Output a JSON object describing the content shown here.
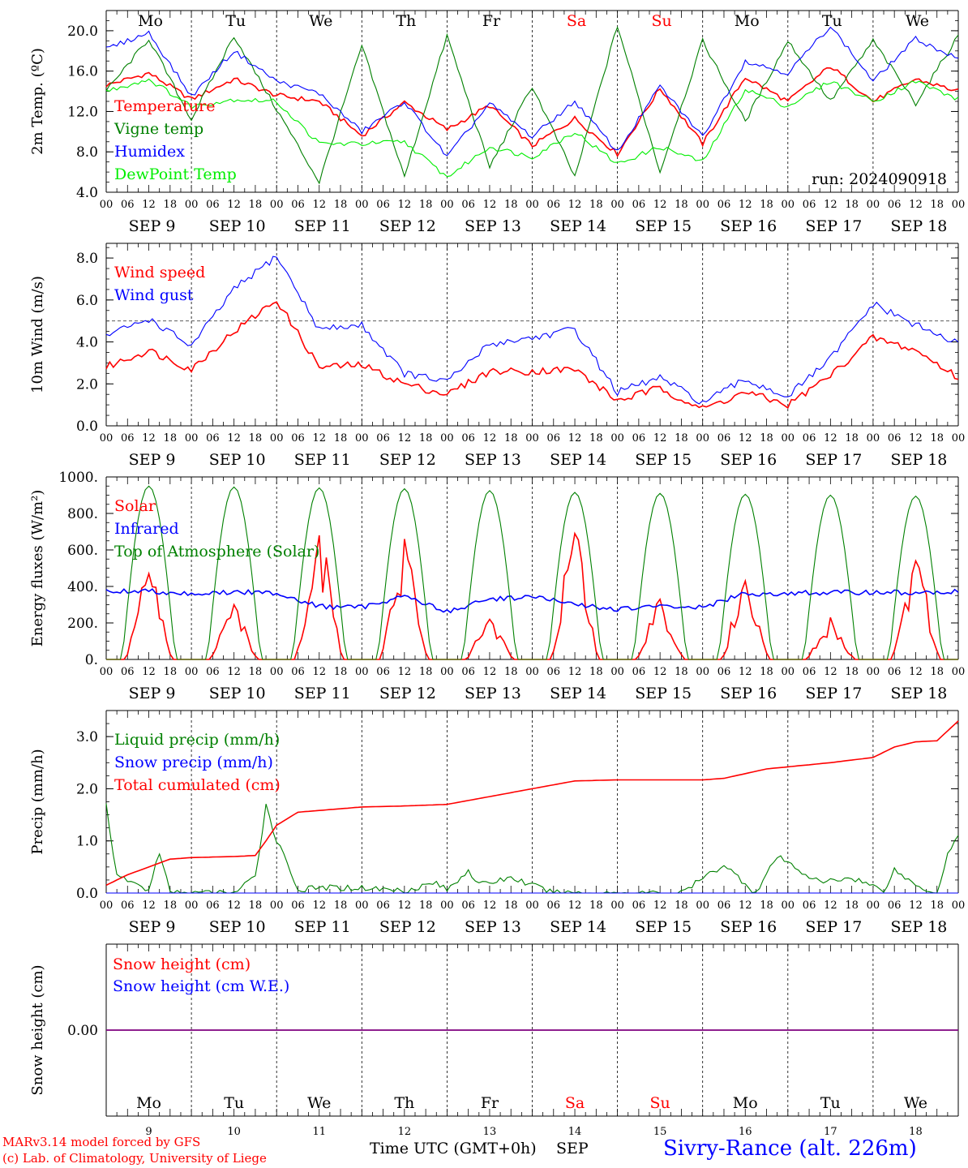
{
  "footer": {
    "credit_line1": "MARv3.14 model forced by GFS",
    "credit_line2": "(c) Lab. of Climatology, University of Liege",
    "xaxis_title": "Time UTC (GMT+0h)",
    "month": "SEP",
    "station": "Sivry-Rance (alt. 226m)"
  },
  "colors": {
    "red": "#ff0000",
    "green": "#008000",
    "blue": "#0000ff",
    "lightgreen": "#00ee00",
    "purple": "#7f007f"
  },
  "days": [
    {
      "abbr": "Mo",
      "num": "9",
      "date": "SEP  9",
      "weekend": false
    },
    {
      "abbr": "Tu",
      "num": "10",
      "date": "SEP 10",
      "weekend": false
    },
    {
      "abbr": "We",
      "num": "11",
      "date": "SEP 11",
      "weekend": false
    },
    {
      "abbr": "Th",
      "num": "12",
      "date": "SEP 12",
      "weekend": false
    },
    {
      "abbr": "Fr",
      "num": "13",
      "date": "SEP 13",
      "weekend": false
    },
    {
      "abbr": "Sa",
      "num": "14",
      "date": "SEP 14",
      "weekend": true
    },
    {
      "abbr": "Su",
      "num": "15",
      "date": "SEP 15",
      "weekend": true
    },
    {
      "abbr": "Mo",
      "num": "16",
      "date": "SEP 16",
      "weekend": false
    },
    {
      "abbr": "Tu",
      "num": "17",
      "date": "SEP 17",
      "weekend": false
    },
    {
      "abbr": "We",
      "num": "18",
      "date": "SEP 18",
      "weekend": false
    }
  ],
  "hour_labels": [
    "00",
    "06",
    "12",
    "18"
  ],
  "chart_data": [
    {
      "type": "line",
      "ylabel": "2m Temp. (ºC)",
      "ylim": [
        4,
        22
      ],
      "yticks": [
        "4.0",
        "8.0",
        "12.0",
        "16.0",
        "20.0"
      ],
      "ytick_values": [
        4,
        8,
        12,
        16,
        20
      ],
      "annotation": "run: 2024090918",
      "x_unit": "hours since SEP 9 00 UTC",
      "series": [
        {
          "name": "Temperature",
          "color": "red",
          "x": [
            0,
            12,
            24,
            36,
            48,
            60,
            72,
            84,
            96,
            108,
            120,
            132,
            144,
            156,
            168,
            180,
            192,
            204,
            216,
            228,
            240
          ],
          "values": [
            14.6,
            15.8,
            13.2,
            15.2,
            13.6,
            13.0,
            9.6,
            12.9,
            10.2,
            12.6,
            8.6,
            11.3,
            7.8,
            14.3,
            8.8,
            15.4,
            13.0,
            16.5,
            13.0,
            15.2,
            14.0
          ]
        },
        {
          "name": "Vigne temp",
          "color": "green",
          "x": [
            0,
            12,
            24,
            36,
            48,
            60,
            72,
            84,
            96,
            108,
            120,
            132,
            144,
            156,
            168,
            180,
            192,
            204,
            216,
            228,
            240
          ],
          "values": [
            14.0,
            19.2,
            11.2,
            19.5,
            12.2,
            5.0,
            18.5,
            5.5,
            19.5,
            6.5,
            14.5,
            5.5,
            20.5,
            6.0,
            19.0,
            11.0,
            19.0,
            13.0,
            19.0,
            12.8,
            19.5
          ]
        },
        {
          "name": "Humidex",
          "color": "blue",
          "x": [
            0,
            12,
            24,
            36,
            48,
            60,
            72,
            84,
            96,
            108,
            120,
            132,
            144,
            156,
            168,
            180,
            192,
            204,
            216,
            228,
            240
          ],
          "values": [
            18.2,
            19.8,
            13.5,
            18.0,
            15.0,
            13.8,
            10.0,
            13.0,
            7.5,
            12.8,
            9.5,
            13.0,
            8.0,
            14.5,
            9.5,
            17.0,
            15.8,
            20.5,
            15.0,
            19.2,
            17.2
          ]
        },
        {
          "name": "DewPoint Temp",
          "color": "lightgreen",
          "x": [
            0,
            12,
            24,
            36,
            48,
            60,
            72,
            84,
            96,
            108,
            120,
            132,
            144,
            156,
            168,
            180,
            192,
            204,
            216,
            228,
            240
          ],
          "values": [
            14.0,
            15.2,
            12.5,
            13.2,
            13.0,
            8.8,
            8.8,
            9.0,
            5.5,
            8.5,
            7.5,
            10.0,
            6.8,
            8.5,
            7.0,
            14.2,
            12.5,
            15.0,
            13.0,
            15.0,
            13.2
          ]
        }
      ]
    },
    {
      "type": "line",
      "ylabel": "10m Wind (m/s)",
      "ylim": [
        0,
        8.7
      ],
      "yticks": [
        "0.0",
        "2.0",
        "4.0",
        "6.0",
        "8.0"
      ],
      "ytick_values": [
        0,
        2,
        4,
        6,
        8
      ],
      "reference_line": 5,
      "x_unit": "hours since SEP 9 00 UTC",
      "series": [
        {
          "name": "Wind speed",
          "color": "red",
          "x": [
            0,
            12,
            24,
            36,
            48,
            60,
            72,
            84,
            96,
            108,
            120,
            132,
            144,
            156,
            168,
            180,
            192,
            204,
            216,
            228,
            240
          ],
          "values": [
            2.8,
            3.6,
            2.7,
            4.5,
            6.0,
            2.8,
            2.9,
            2.0,
            1.5,
            2.6,
            2.6,
            2.7,
            1.2,
            1.8,
            0.8,
            1.6,
            1.0,
            2.4,
            4.2,
            3.6,
            2.3
          ]
        },
        {
          "name": "Wind gust",
          "color": "blue",
          "x": [
            0,
            12,
            24,
            36,
            48,
            60,
            72,
            84,
            96,
            108,
            120,
            132,
            144,
            156,
            168,
            180,
            192,
            204,
            216,
            228,
            240
          ],
          "values": [
            4.3,
            5.1,
            3.8,
            6.5,
            8.1,
            4.6,
            4.8,
            2.5,
            2.1,
            3.9,
            4.2,
            4.6,
            1.6,
            2.3,
            1.1,
            2.2,
            1.4,
            3.2,
            5.8,
            4.8,
            3.9
          ]
        }
      ]
    },
    {
      "type": "line",
      "ylabel": "Energy fluxes (W/m²)",
      "ylim": [
        0,
        1000
      ],
      "yticks": [
        "0.",
        "200.",
        "400.",
        "600.",
        "800.",
        "1000."
      ],
      "ytick_values": [
        0,
        200,
        400,
        600,
        800,
        1000
      ],
      "x_unit": "hours since SEP 9 00 UTC",
      "series": [
        {
          "name": "Solar",
          "color": "red",
          "daily_peaks": [
            470,
            300,
            680,
            660,
            220,
            690,
            330,
            430,
            230,
            540
          ]
        },
        {
          "name": "Infrared",
          "color": "blue",
          "x": [
            0,
            12,
            24,
            36,
            48,
            60,
            72,
            84,
            96,
            108,
            120,
            132,
            144,
            156,
            168,
            180,
            192,
            204,
            216,
            228,
            240
          ],
          "values": [
            372,
            375,
            360,
            368,
            365,
            290,
            285,
            350,
            260,
            330,
            345,
            300,
            275,
            290,
            285,
            360,
            362,
            365,
            368,
            365,
            370
          ]
        },
        {
          "name": "Top of Atmosphere (Solar)",
          "color": "green",
          "daily_peaks": [
            950,
            945,
            940,
            935,
            925,
            915,
            910,
            905,
            900,
            895
          ]
        }
      ]
    },
    {
      "type": "line",
      "ylabel": "Precip (mm/h)",
      "ylim": [
        0,
        3.5
      ],
      "yticks": [
        "0.0",
        "1.0",
        "2.0",
        "3.0"
      ],
      "ytick_values": [
        0,
        1,
        2,
        3
      ],
      "x_unit": "hours since SEP 9 00 UTC",
      "series": [
        {
          "name": "Liquid precip (mm/h)",
          "color": "green",
          "x": [
            0,
            3,
            6,
            12,
            15,
            18,
            24,
            36,
            42,
            45,
            48,
            51,
            54,
            60,
            72,
            84,
            93,
            96,
            102,
            105,
            114,
            126,
            150,
            162,
            174,
            183,
            189,
            201,
            210,
            219,
            222,
            228,
            234,
            237,
            240
          ],
          "values": [
            1.7,
            0.3,
            0.25,
            0.05,
            0.8,
            0.0,
            0.0,
            0.0,
            0.3,
            1.7,
            1.0,
            0.6,
            0.05,
            0.1,
            0.1,
            0.05,
            0.2,
            0.05,
            0.45,
            0.15,
            0.3,
            0.0,
            0.0,
            0.0,
            0.55,
            0.0,
            0.7,
            0.2,
            0.3,
            0.05,
            0.45,
            0.15,
            0.0,
            0.75,
            1.1
          ]
        },
        {
          "name": "Snow precip (mm/h)",
          "color": "blue",
          "x": [
            0,
            240
          ],
          "values": [
            0,
            0
          ]
        },
        {
          "name": "Total cumulated (cm)",
          "color": "red",
          "x": [
            0,
            6,
            12,
            18,
            24,
            36,
            42,
            45,
            48,
            54,
            72,
            84,
            96,
            108,
            120,
            132,
            144,
            156,
            168,
            174,
            186,
            204,
            216,
            222,
            228,
            234,
            240
          ],
          "values": [
            0.15,
            0.35,
            0.5,
            0.65,
            0.68,
            0.7,
            0.72,
            1.0,
            1.3,
            1.55,
            1.65,
            1.67,
            1.7,
            1.85,
            2.0,
            2.15,
            2.17,
            2.17,
            2.17,
            2.2,
            2.38,
            2.5,
            2.6,
            2.8,
            2.9,
            2.92,
            3.3
          ]
        }
      ]
    },
    {
      "type": "line",
      "ylabel": "Snow height (cm)",
      "ylim": [
        -1,
        1
      ],
      "yticks": [
        "0.00"
      ],
      "ytick_values": [
        0
      ],
      "x_unit": "hours since SEP 9 00 UTC",
      "series": [
        {
          "name": "Snow height (cm)",
          "color": "red",
          "x": [
            0,
            240
          ],
          "values": [
            0,
            0
          ]
        },
        {
          "name": "Snow height (cm W.E.)",
          "color": "blue",
          "x": [
            0,
            240
          ],
          "values": [
            0,
            0
          ]
        }
      ]
    }
  ]
}
